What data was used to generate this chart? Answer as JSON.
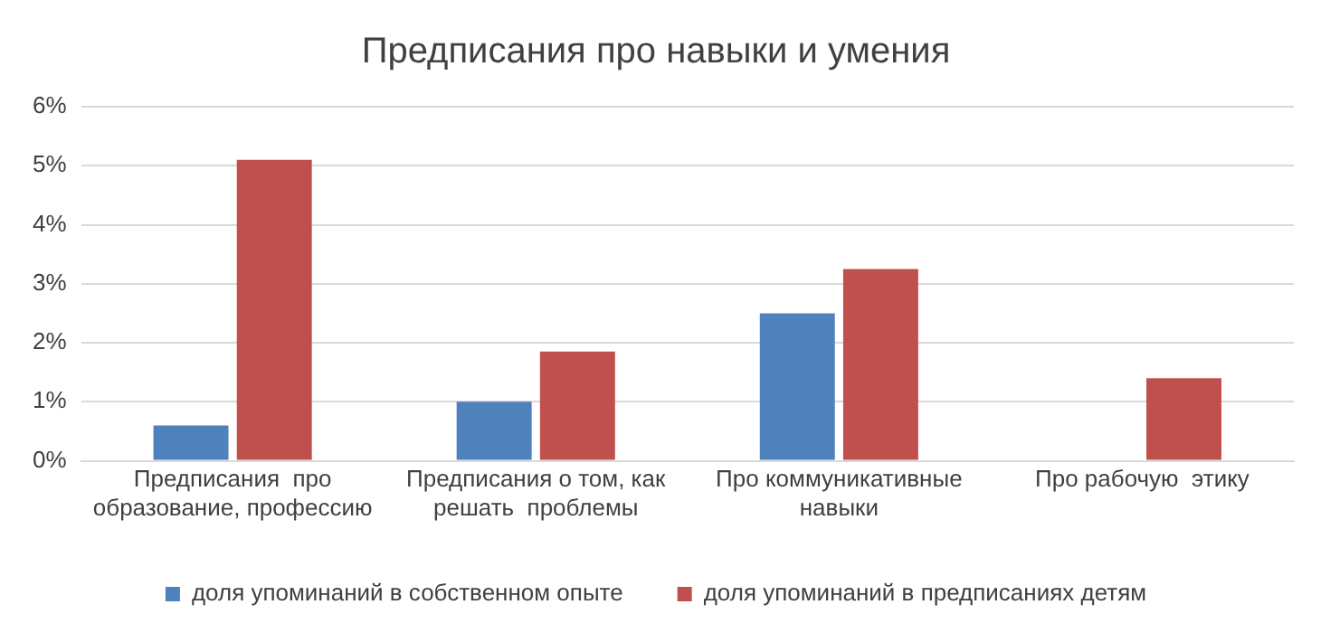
{
  "chart_data": {
    "type": "bar",
    "title": "Предписания про навыки и умения",
    "categories": [
      "Предписания  про\nобразование, профессию",
      "Предписания о том, как\nрешать  проблемы",
      "Про коммуникативные\nнавыки",
      "Про рабочую  этику"
    ],
    "series": [
      {
        "name": "доля упоминаний в собственном опыте",
        "color": "#4f81bd",
        "values": [
          0.6,
          1.0,
          2.5,
          null
        ]
      },
      {
        "name": "доля упоминаний в предписаниях детям",
        "color": "#c0504d",
        "values": [
          5.1,
          1.85,
          3.25,
          1.4
        ]
      }
    ],
    "ylim": [
      0,
      6
    ],
    "yticks": [
      {
        "value": 0,
        "label": "0%"
      },
      {
        "value": 1,
        "label": "1%"
      },
      {
        "value": 2,
        "label": "2%"
      },
      {
        "value": 3,
        "label": "3%"
      },
      {
        "value": 4,
        "label": "4%"
      },
      {
        "value": 5,
        "label": "5%"
      },
      {
        "value": 6,
        "label": "6%"
      }
    ],
    "grid": "y",
    "legend": "bottom"
  }
}
